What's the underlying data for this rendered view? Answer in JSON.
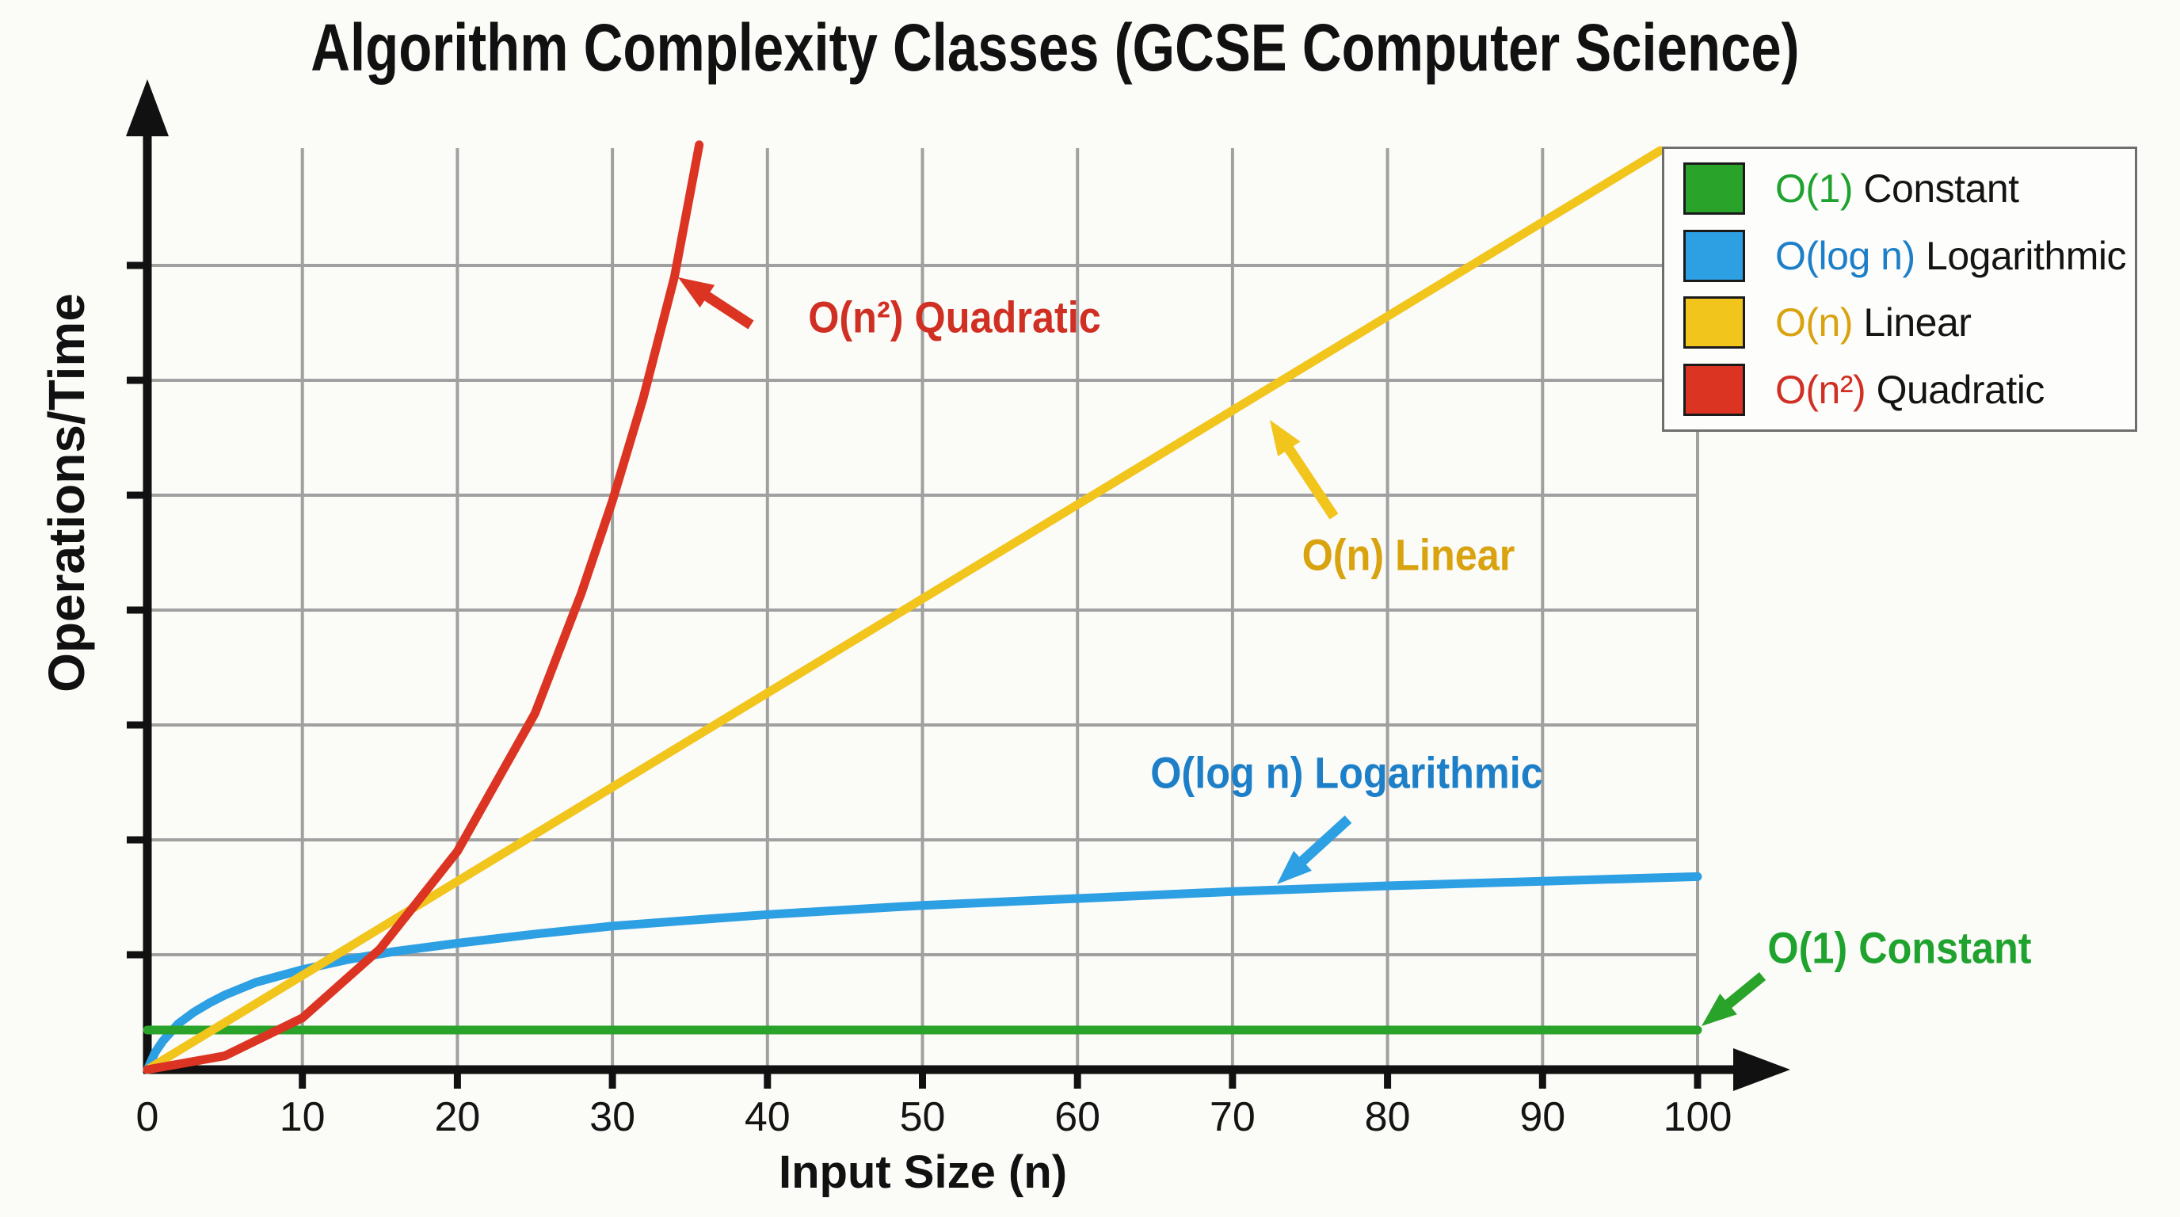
{
  "figure": {
    "title": "Algorithm Complexity Classes (GCSE Computer Science)"
  },
  "axes": {
    "x_label": "Input Size (n)",
    "y_label": "Operations/Time",
    "x_ticks": [
      0,
      10,
      20,
      30,
      40,
      50,
      60,
      70,
      80,
      90,
      100
    ]
  },
  "annotations": {
    "quadratic": "O(n²) Quadratic",
    "linear": "O(n) Linear",
    "log": "O(log n) Logarithmic",
    "constant": "O(1) Constant"
  },
  "legend": {
    "items": [
      {
        "symbol": "O(1)",
        "name": "Constant",
        "symbol_color": "#1fa32e",
        "swatch_color": "#29a329"
      },
      {
        "symbol": "O(log n)",
        "name": "Logarithmic",
        "symbol_color": "#1d7fc8",
        "swatch_color": "#2d9fe3"
      },
      {
        "symbol": "O(n)",
        "name": "Linear",
        "symbol_color": "#d9a30f",
        "swatch_color": "#f2c51d"
      },
      {
        "symbol": "O(n²)",
        "name": "Quadratic",
        "symbol_color": "#d03024",
        "swatch_color": "#dc3423"
      }
    ]
  },
  "colors": {
    "background": "#fbfbf8",
    "grid": "#a0a0a0",
    "axis": "#111111",
    "constant_line": "#29a329",
    "log_line": "#2d9fe3",
    "linear_line": "#f2c51d",
    "quadratic_line": "#dc3423",
    "constant_text": "#1fa32e",
    "log_text": "#1d7fc8",
    "linear_text": "#d9a30f",
    "quadratic_text": "#d03024"
  },
  "chart_data": {
    "type": "line",
    "title": "Algorithm Complexity Classes (GCSE Computer Science)",
    "xlabel": "Input Size (n)",
    "ylabel": "Operations/Time",
    "xlim": [
      0,
      100
    ],
    "ylim": [
      0,
      8.2
    ],
    "x_ticks": [
      0,
      10,
      20,
      30,
      40,
      50,
      60,
      70,
      80,
      90,
      100
    ],
    "y_ticks": "unlabeled (7 gridlines, arbitrary units)",
    "grid": true,
    "legend_position": "upper right",
    "series": [
      {
        "name": "O(log n) Logarithmic",
        "color_key": "log_line",
        "x": [
          0,
          0.5,
          1,
          2,
          3,
          4,
          5,
          7,
          10,
          13,
          16,
          20,
          25,
          30,
          35,
          40,
          50,
          60,
          70,
          80,
          90,
          100
        ],
        "y": [
          0,
          0.15,
          0.25,
          0.4,
          0.5,
          0.58,
          0.65,
          0.76,
          0.87,
          0.96,
          1.03,
          1.1,
          1.18,
          1.25,
          1.3,
          1.35,
          1.43,
          1.49,
          1.55,
          1.6,
          1.64,
          1.68
        ]
      },
      {
        "name": "O(1) Constant",
        "color_key": "constant_line",
        "x": [
          0,
          100
        ],
        "y": [
          0.345,
          0.345
        ]
      },
      {
        "name": "O(n) Linear",
        "color_key": "linear_line",
        "x": [
          0,
          97.6
        ],
        "y": [
          0,
          8.0
        ]
      },
      {
        "name": "O(n²) Quadratic",
        "color_key": "quadratic_line",
        "x": [
          0,
          5,
          10,
          15,
          20,
          25,
          28,
          30,
          32,
          34,
          35.6
        ],
        "y": [
          0,
          0.12,
          0.45,
          1.05,
          1.9,
          3.1,
          4.15,
          4.95,
          5.85,
          6.9,
          8.05
        ]
      }
    ]
  }
}
